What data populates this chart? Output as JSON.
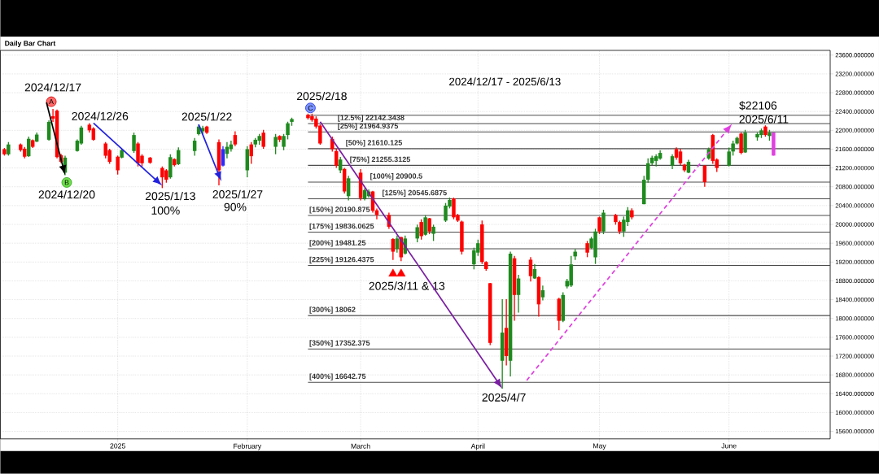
{
  "chart_data": {
    "type": "candlestick",
    "title": "2024/12/17 - 2025/6/13",
    "subtitle": "Daily Bar Chart",
    "x": [
      "2024-12-05",
      "2024-12-06",
      "2024-12-09",
      "2024-12-10",
      "2024-12-11",
      "2024-12-12",
      "2024-12-13",
      "2024-12-16",
      "2024-12-17",
      "2024-12-18",
      "2024-12-19",
      "2024-12-20",
      "2024-12-23",
      "2024-12-24",
      "2024-12-26",
      "2024-12-27",
      "2024-12-30",
      "2024-12-31",
      "2025-01-02",
      "2025-01-03",
      "2025-01-06",
      "2025-01-07",
      "2025-01-08",
      "2025-01-10",
      "2025-01-13",
      "2025-01-14",
      "2025-01-15",
      "2025-01-16",
      "2025-01-17",
      "2025-01-21",
      "2025-01-22",
      "2025-01-23",
      "2025-01-24",
      "2025-01-27",
      "2025-01-28",
      "2025-01-29",
      "2025-01-30",
      "2025-01-31",
      "2025-02-03",
      "2025-02-04",
      "2025-02-05",
      "2025-02-06",
      "2025-02-07",
      "2025-02-10",
      "2025-02-11",
      "2025-02-12",
      "2025-02-13",
      "2025-02-14",
      "2025-02-18",
      "2025-02-19",
      "2025-02-20",
      "2025-02-21",
      "2025-02-24",
      "2025-02-25",
      "2025-02-26",
      "2025-02-27",
      "2025-02-28",
      "2025-03-03",
      "2025-03-04",
      "2025-03-05",
      "2025-03-06",
      "2025-03-07",
      "2025-03-10",
      "2025-03-11",
      "2025-03-12",
      "2025-03-13",
      "2025-03-14",
      "2025-03-17",
      "2025-03-18",
      "2025-03-19",
      "2025-03-20",
      "2025-03-21",
      "2025-03-24",
      "2025-03-25",
      "2025-03-26",
      "2025-03-27",
      "2025-03-28",
      "2025-03-31",
      "2025-04-01",
      "2025-04-02",
      "2025-04-03",
      "2025-04-04",
      "2025-04-07",
      "2025-04-08",
      "2025-04-09",
      "2025-04-10",
      "2025-04-11",
      "2025-04-14",
      "2025-04-15",
      "2025-04-16",
      "2025-04-17",
      "2025-04-21",
      "2025-04-22",
      "2025-04-23",
      "2025-04-24",
      "2025-04-25",
      "2025-04-28",
      "2025-04-29",
      "2025-04-30",
      "2025-05-01",
      "2025-05-02",
      "2025-05-05",
      "2025-05-06",
      "2025-05-07",
      "2025-05-08",
      "2025-05-09",
      "2025-05-12",
      "2025-05-13",
      "2025-05-14",
      "2025-05-15",
      "2025-05-16",
      "2025-05-19",
      "2025-05-20",
      "2025-05-21",
      "2025-05-22",
      "2025-05-23",
      "2025-05-27",
      "2025-05-28",
      "2025-05-29",
      "2025-05-30",
      "2025-06-02",
      "2025-06-03",
      "2025-06-04",
      "2025-06-05",
      "2025-06-06",
      "2025-06-09",
      "2025-06-10",
      "2025-06-11",
      "2025-06-12",
      "2025-06-13"
    ],
    "ohlc": [
      [
        21600,
        21624,
        21463,
        21490
      ],
      [
        21490,
        21751,
        21463,
        21700
      ],
      [
        21700,
        21722,
        21549,
        21580
      ],
      [
        21610,
        21647,
        21405,
        21440
      ],
      [
        21450,
        21866,
        21434,
        21820
      ],
      [
        21790,
        21808,
        21624,
        21650
      ],
      [
        21760,
        21952,
        21751,
        21910
      ],
      [
        21800,
        22212,
        21780,
        22180
      ],
      [
        22300,
        22454,
        22180,
        22250
      ],
      [
        22420,
        22440,
        21405,
        21430
      ],
      [
        21470,
        21500,
        21300,
        21330
      ],
      [
        21100,
        21463,
        21048,
        21420
      ],
      [
        21560,
        21808,
        21549,
        21780
      ],
      [
        21720,
        22096,
        21693,
        22060
      ],
      [
        22120,
        22154,
        21952,
        22000
      ],
      [
        22040,
        22068,
        21780,
        21800
      ],
      [
        21720,
        21751,
        21405,
        21460
      ],
      [
        21580,
        21607,
        21290,
        21330
      ],
      [
        21440,
        21463,
        21060,
        21150
      ],
      [
        21420,
        21607,
        21405,
        21580
      ],
      [
        21560,
        21952,
        21520,
        21900
      ],
      [
        21720,
        21751,
        21232,
        21300
      ],
      [
        21460,
        21492,
        21232,
        21300
      ],
      [
        21420,
        21434,
        21290,
        21310
      ],
      [
        21200,
        21232,
        20772,
        21000
      ],
      [
        21150,
        21175,
        20887,
        20950
      ],
      [
        21000,
        21492,
        20973,
        21430
      ],
      [
        21390,
        21405,
        21232,
        21260
      ],
      [
        21280,
        21636,
        21261,
        21580
      ],
      [
        21560,
        21837,
        21463,
        21780
      ],
      [
        21920,
        22125,
        21895,
        22080
      ],
      [
        21980,
        22096,
        21923,
        22050
      ],
      [
        22080,
        22096,
        21923,
        21950
      ],
      [
        21750,
        21808,
        20829,
        21150
      ],
      [
        21250,
        21664,
        21232,
        21600
      ],
      [
        21500,
        21751,
        21405,
        21650
      ],
      [
        21600,
        21780,
        21549,
        21700
      ],
      [
        21900,
        21981,
        21664,
        21700
      ],
      [
        21150,
        21664,
        21002,
        21600
      ],
      [
        21700,
        21751,
        21290,
        21450
      ],
      [
        21700,
        21837,
        21636,
        21800
      ],
      [
        21780,
        21923,
        21693,
        21880
      ],
      [
        21950,
        22010,
        21607,
        21650
      ],
      [
        21650,
        21923,
        21492,
        21860
      ],
      [
        21880,
        21895,
        21751,
        21800
      ],
      [
        21650,
        21923,
        21578,
        21880
      ],
      [
        21900,
        22183,
        21808,
        22150
      ],
      [
        22180,
        22269,
        22096,
        22240
      ],
      [
        22330,
        22355,
        22230,
        22260
      ],
      [
        22300,
        22355,
        22183,
        22220
      ],
      [
        22250,
        22298,
        22039,
        22080
      ],
      [
        22100,
        22125,
        21693,
        21720
      ],
      [
        21820,
        21866,
        21549,
        21600
      ],
      [
        21560,
        21607,
        21203,
        21250
      ],
      [
        21150,
        21434,
        21088,
        21380
      ],
      [
        21180,
        21203,
        20656,
        20700
      ],
      [
        20600,
        21031,
        20512,
        20980
      ],
      [
        21100,
        21175,
        20512,
        20560
      ],
      [
        20550,
        20771,
        20512,
        20730
      ],
      [
        20600,
        20743,
        20570,
        20700
      ],
      [
        20700,
        20714,
        20253,
        20290
      ],
      [
        20300,
        20339,
        20109,
        20200
      ],
      [
        20200,
        20253,
        19907,
        19950
      ],
      [
        19690,
        19706,
        19245,
        19420
      ],
      [
        19480,
        19763,
        19400,
        19700
      ],
      [
        19730,
        19735,
        19216,
        19300
      ],
      [
        19380,
        19763,
        19360,
        19700
      ],
      [
        19700,
        19994,
        19620,
        19940
      ],
      [
        20050,
        20109,
        19677,
        19750
      ],
      [
        19780,
        20195,
        19763,
        20150
      ],
      [
        20130,
        20138,
        19792,
        19850
      ],
      [
        19800,
        19994,
        19648,
        19950
      ],
      [
        20080,
        20455,
        20052,
        20400
      ],
      [
        20380,
        20571,
        20340,
        20520
      ],
      [
        20550,
        20571,
        20110,
        20150
      ],
      [
        20200,
        20225,
        20052,
        20080
      ],
      [
        20060,
        20081,
        19361,
        19420
      ],
      [
        19150,
        19505,
        19044,
        19450
      ],
      [
        19400,
        19678,
        19332,
        19600
      ],
      [
        20000,
        20081,
        19159,
        19200
      ],
      [
        19200,
        19217,
        19015,
        19050
      ],
      [
        18750,
        18756,
        17432,
        17480
      ],
      [
        17100,
        18411,
        16510,
        17700
      ],
      [
        17800,
        18411,
        16999,
        17200
      ],
      [
        17100,
        19419,
        16769,
        19380
      ],
      [
        19280,
        19332,
        17950,
        18500
      ],
      [
        18500,
        18929,
        18123,
        18850
      ],
      [
        19250,
        19303,
        18785,
        18900
      ],
      [
        18850,
        19159,
        18843,
        19050
      ],
      [
        18880,
        18900,
        18036,
        18300
      ],
      [
        18450,
        18699,
        18382,
        18600
      ],
      [
        18420,
        18439,
        17748,
        17950
      ],
      [
        17950,
        18555,
        17921,
        18500
      ],
      [
        18680,
        18843,
        18641,
        18800
      ],
      [
        18700,
        19332,
        18670,
        19150
      ],
      [
        19320,
        19477,
        19245,
        19420
      ],
      [
        19600,
        19648,
        19303,
        19400
      ],
      [
        19500,
        19735,
        19476,
        19700
      ],
      [
        19300,
        19908,
        19159,
        19850
      ],
      [
        20150,
        20167,
        19792,
        19850
      ],
      [
        19850,
        20311,
        19792,
        20250
      ],
      [
        20200,
        20224,
        19994,
        20050
      ],
      [
        20050,
        20080,
        19792,
        19850
      ],
      [
        19850,
        20167,
        19735,
        20100
      ],
      [
        20050,
        20368,
        19965,
        20300
      ],
      [
        20300,
        20340,
        20109,
        20150
      ],
      [
        20430,
        21031,
        20426,
        20950
      ],
      [
        20950,
        21405,
        20887,
        21300
      ],
      [
        21300,
        21463,
        21261,
        21420
      ],
      [
        21350,
        21492,
        21232,
        21450
      ],
      [
        21400,
        21578,
        21376,
        21520
      ],
      [
        21250,
        21492,
        21175,
        21450
      ],
      [
        21600,
        21636,
        21376,
        21420
      ],
      [
        21550,
        21607,
        21261,
        21300
      ],
      [
        21270,
        21290,
        21117,
        21150
      ],
      [
        21100,
        21376,
        21088,
        21330
      ],
      [
        21250,
        21261,
        20800,
        20900
      ],
      [
        21400,
        21635,
        21376,
        21600
      ],
      [
        21900,
        21923,
        21290,
        21350
      ],
      [
        21380,
        21405,
        21117,
        21200
      ],
      [
        21250,
        21635,
        21232,
        21550
      ],
      [
        21550,
        21780,
        21463,
        21720
      ],
      [
        21720,
        21866,
        21700,
        21840
      ],
      [
        21930,
        21952,
        21491,
        21520
      ],
      [
        21530,
        22010,
        21520,
        21950
      ],
      [
        21850,
        21952,
        21780,
        21920
      ],
      [
        21900,
        22039,
        21837,
        22000
      ],
      [
        22080,
        22106,
        21866,
        21900
      ],
      [
        21880,
        22010,
        21780,
        21950
      ],
      [
        21952,
        21952,
        21463,
        21463
      ]
    ],
    "colors": [
      "#ff0000",
      "#1e8a1e",
      "#ff0000",
      "#ff0000",
      "#1e8a1e",
      "#ff0000",
      "#1e8a1e",
      "#1e8a1e",
      "#ff0000",
      "#ff0000",
      "#ff0000",
      "#1e8a1e",
      "#1e8a1e",
      "#1e8a1e",
      "#ff0000",
      "#ff0000",
      "#ff0000",
      "#ff0000",
      "#ff0000",
      "#1e8a1e",
      "#1e8a1e",
      "#ff0000",
      "#ff0000",
      "#ff0000",
      "#ff0000",
      "#ff0000",
      "#1e8a1e",
      "#ff0000",
      "#1e8a1e",
      "#1e8a1e",
      "#1e8a1e",
      "#1e8a1e",
      "#ff0000",
      "#ff0000",
      "#2a2aff",
      "#1e8a1e",
      "#1e8a1e",
      "#ff0000",
      "#1e8a1e",
      "#ff0000",
      "#1e8a1e",
      "#1e8a1e",
      "#ff0000",
      "#1e8a1e",
      "#ff0000",
      "#1e8a1e",
      "#1e8a1e",
      "#1e8a1e",
      "#ff0000",
      "#ff0000",
      "#ff0000",
      "#ff0000",
      "#ff0000",
      "#ff0000",
      "#1e8a1e",
      "#ff0000",
      "#1e8a1e",
      "#ff0000",
      "#1e8a1e",
      "#1e8a1e",
      "#ff0000",
      "#ff0000",
      "#ff0000",
      "#ff0000",
      "#1e8a1e",
      "#ff0000",
      "#1e8a1e",
      "#1e8a1e",
      "#ff0000",
      "#1e8a1e",
      "#ff0000",
      "#1e8a1e",
      "#1e8a1e",
      "#1e8a1e",
      "#ff0000",
      "#ff0000",
      "#ff0000",
      "#1e8a1e",
      "#1e8a1e",
      "#ff0000",
      "#ff0000",
      "#ff0000",
      "#1e8a1e",
      "#ff0000",
      "#1e8a1e",
      "#ff0000",
      "#1e8a1e",
      "#ff0000",
      "#1e8a1e",
      "#ff0000",
      "#1e8a1e",
      "#ff0000",
      "#1e8a1e",
      "#1e8a1e",
      "#1e8a1e",
      "#1e8a1e",
      "#ff0000",
      "#1e8a1e",
      "#1e8a1e",
      "#ff0000",
      "#1e8a1e",
      "#ff0000",
      "#ff0000",
      "#1e8a1e",
      "#1e8a1e",
      "#ff0000",
      "#1e8a1e",
      "#1e8a1e",
      "#1e8a1e",
      "#1e8a1e",
      "#1e8a1e",
      "#1e8a1e",
      "#ff0000",
      "#ff0000",
      "#ff0000",
      "#1e8a1e",
      "#ff0000",
      "#1e8a1e",
      "#ff0000",
      "#ff0000",
      "#1e8a1e",
      "#1e8a1e",
      "#1e8a1e",
      "#ff0000",
      "#1e8a1e",
      "#1e8a1e",
      "#1e8a1e",
      "#ff0000",
      "#1e8a1e",
      "#e040e0"
    ],
    "series": [
      {
        "type": "scatter",
        "marker": "triangle",
        "color": "#ff0000",
        "x": [
          "2025-03-11",
          "2025-03-13"
        ],
        "values": [
          18950,
          18950
        ]
      }
    ],
    "xlim": [
      "2024-12-04",
      "2025-06-27"
    ],
    "ylim": [
      15440,
      23700
    ],
    "xticks": [
      {
        "value": "2025-01-02",
        "label": "2025"
      },
      {
        "value": "2025-02-03",
        "label": "February"
      },
      {
        "value": "2025-03-03",
        "label": "March"
      },
      {
        "value": "2025-04-01",
        "label": "April"
      },
      {
        "value": "2025-05-01",
        "label": "May"
      },
      {
        "value": "2025-06-02",
        "label": "June"
      }
    ],
    "yticks": [
      {
        "value": 15600,
        "label": "15600.000000"
      },
      {
        "value": 16000,
        "label": "16000.000000"
      },
      {
        "value": 16400,
        "label": "16400.000000"
      },
      {
        "value": 16800,
        "label": "16800.000000"
      },
      {
        "value": 17200,
        "label": "17200.000000"
      },
      {
        "value": 17600,
        "label": "17600.000000"
      },
      {
        "value": 18000,
        "label": "18000.000000"
      },
      {
        "value": 18400,
        "label": "18400.000000"
      },
      {
        "value": 18800,
        "label": "18800.000000"
      },
      {
        "value": 19200,
        "label": "19200.000000"
      },
      {
        "value": 19600,
        "label": "19600.000000"
      },
      {
        "value": 20000,
        "label": "20000.000000"
      },
      {
        "value": 20400,
        "label": "20400.000000"
      },
      {
        "value": 20800,
        "label": "20800.000000"
      },
      {
        "value": 21200,
        "label": "21200.000000"
      },
      {
        "value": 21600,
        "label": "21600.000000"
      },
      {
        "value": 22000,
        "label": "22000.000000"
      },
      {
        "value": 22400,
        "label": "22400.000000"
      },
      {
        "value": 22800,
        "label": "22800.000000"
      },
      {
        "value": 23200,
        "label": "23200.000000"
      },
      {
        "value": 23600,
        "label": "23600.000000"
      }
    ],
    "grid": true,
    "ref_lines": [
      {
        "axis": "y",
        "value": 22319.75,
        "label": null
      },
      {
        "axis": "y",
        "value": 22142.3438,
        "label": "[12.5%] 22142.3438"
      },
      {
        "axis": "y",
        "value": 21964.9375,
        "label": "[25%] 21964.9375"
      },
      {
        "axis": "y",
        "value": 21610.125,
        "label": "[50%] 21610.125"
      },
      {
        "axis": "y",
        "value": 21255.3125,
        "label": "[75%] 21255.3125"
      },
      {
        "axis": "y",
        "value": 20900.5,
        "label": "[100%] 20900.5"
      },
      {
        "axis": "y",
        "value": 20545.6875,
        "label": "[125%] 20545.6875"
      },
      {
        "axis": "y",
        "value": 20190.875,
        "label": "[150%] 20190.875"
      },
      {
        "axis": "y",
        "value": 19836.0625,
        "label": "[175%] 19836.0625"
      },
      {
        "axis": "y",
        "value": 19481.25,
        "label": "[200%] 19481.25"
      },
      {
        "axis": "y",
        "value": 19126.4375,
        "label": "[225%] 19126.4375"
      },
      {
        "axis": "y",
        "value": 18062,
        "label": "[300%] 18062"
      },
      {
        "axis": "y",
        "value": 17352.375,
        "label": "[350%] 17352.375"
      },
      {
        "axis": "y",
        "value": 16642.75,
        "label": "[400%] 16642.75"
      }
    ],
    "annotations": [
      {
        "text": "2024/12/17",
        "x": "2024-12-17",
        "y": 22454
      },
      {
        "text": "A",
        "x": "2024-12-17",
        "y": 22454
      },
      {
        "text": "2024/12/20",
        "x": "2024-12-20",
        "y": 21048
      },
      {
        "text": "B",
        "x": "2024-12-20",
        "y": 21048
      },
      {
        "text": "2024/12/26",
        "x": "2024-12-26",
        "y": 22154
      },
      {
        "text": "2025/1/13",
        "x": "2025-01-13",
        "y": 20772
      },
      "100%",
      {
        "text": "2025/1/22",
        "x": "2025-01-22",
        "y": 22125
      },
      {
        "text": "2025/1/27",
        "x": "2025-01-27",
        "y": 20829
      },
      "90%",
      {
        "text": "2025/2/18",
        "x": "2025-02-18",
        "y": 22355
      },
      {
        "text": "C",
        "x": "2025-02-18",
        "y": 22355
      },
      {
        "text": "2025/3/11 & 13",
        "x": "2025-03-12",
        "y": 18950
      },
      {
        "text": "2025/4/7",
        "x": "2025-04-07",
        "y": 16510
      },
      {
        "text": "$22106",
        "x": "2025-06-11",
        "y": 22106
      },
      {
        "text": "2025/6/11",
        "x": "2025-06-11",
        "y": 22106
      }
    ]
  }
}
